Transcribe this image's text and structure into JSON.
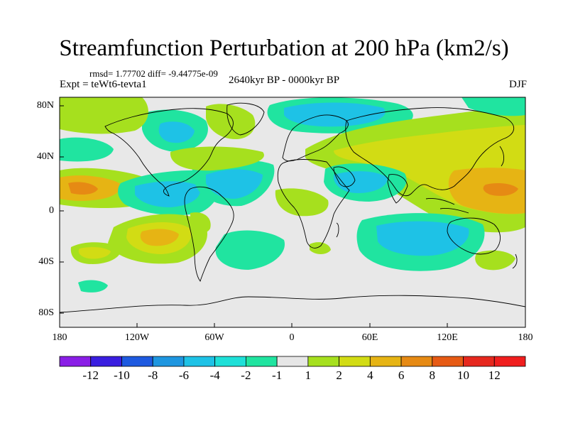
{
  "title": "Streamfunction Perturbation at 200 hPa (km2/s)",
  "stats": "rmsd= 1.77702 diff= -9.44775e-09",
  "experiment": "Expt = teWt6-tevta1",
  "period": "2640kyr BP - 0000kyr BP",
  "season": "DJF",
  "lat_ticks": [
    "80N",
    "40N",
    "0",
    "40S",
    "80S"
  ],
  "lon_ticks": [
    "180",
    "120W",
    "60W",
    "0",
    "60E",
    "120E",
    "180"
  ],
  "colorbar": {
    "labels": [
      "-12",
      "-10",
      "-8",
      "-6",
      "-4",
      "-2",
      "-1",
      "1",
      "2",
      "4",
      "6",
      "8",
      "10",
      "12"
    ],
    "colors": [
      "#8a1ee6",
      "#3a1ee0",
      "#1e5ae0",
      "#1e96e0",
      "#1ec2e6",
      "#1ee0d8",
      "#20e4a0",
      "#e6e6e6",
      "#a6e01e",
      "#d2dc14",
      "#e6b414",
      "#e68a14",
      "#e65a14",
      "#e6281e",
      "#f01e1e"
    ]
  },
  "chart_data": {
    "type": "heatmap",
    "title": "Streamfunction Perturbation at 200 hPa (km2/s)",
    "x_range": [
      -180,
      180
    ],
    "y_range": [
      -90,
      90
    ],
    "levels": [
      -12,
      -10,
      -8,
      -6,
      -4,
      -2,
      -1,
      1,
      2,
      4,
      6,
      8,
      10,
      12
    ],
    "features": [
      {
        "lon": -170,
        "lat": 15,
        "value": 6,
        "rx": 22,
        "ry": 12
      },
      {
        "lon": -110,
        "lat": 5,
        "value": -4,
        "rx": 16,
        "ry": 10
      },
      {
        "lon": -60,
        "lat": 15,
        "value": -4,
        "rx": 18,
        "ry": 10
      },
      {
        "lon": -110,
        "lat": -20,
        "value": 4,
        "rx": 22,
        "ry": 11
      },
      {
        "lon": -150,
        "lat": -30,
        "value": 4,
        "rx": 12,
        "ry": 6
      },
      {
        "lon": -90,
        "lat": 70,
        "value": -2,
        "rx": 15,
        "ry": 9
      },
      {
        "lon": 20,
        "lat": 75,
        "value": -2,
        "rx": 25,
        "ry": 8
      },
      {
        "lon": -50,
        "lat": 55,
        "value": 2,
        "rx": 12,
        "ry": 9
      },
      {
        "lon": 90,
        "lat": 40,
        "value": 4,
        "rx": 45,
        "ry": 12
      },
      {
        "lon": 160,
        "lat": 15,
        "value": 6,
        "rx": 22,
        "ry": 12
      },
      {
        "lon": 60,
        "lat": -30,
        "value": -2,
        "rx": 22,
        "ry": 12
      },
      {
        "lon": 20,
        "lat": 25,
        "value": -2,
        "rx": 20,
        "ry": 10
      },
      {
        "lon": 10,
        "lat": 5,
        "value": 2,
        "rx": 10,
        "ry": 8
      }
    ]
  }
}
